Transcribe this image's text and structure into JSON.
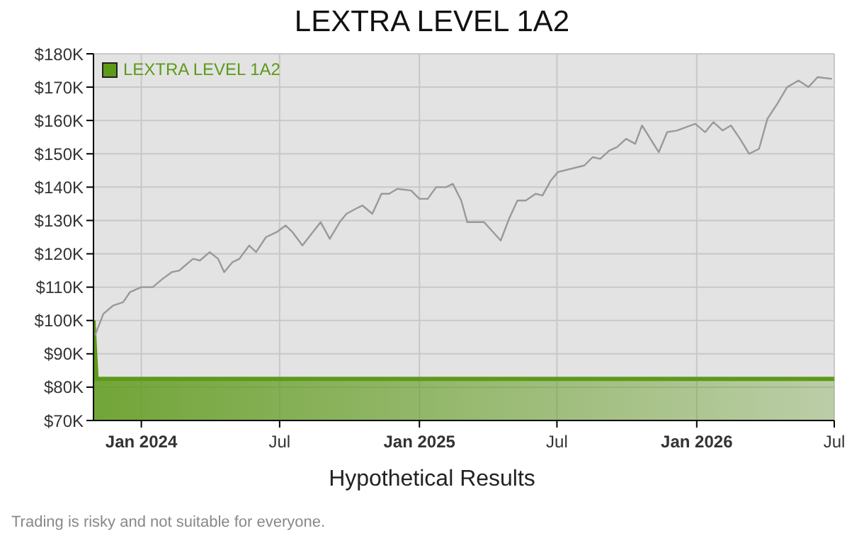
{
  "chart_data": {
    "type": "line",
    "title": "LEXTRA LEVEL 1A2",
    "xlabel": "Hypothetical Results",
    "annotations": [
      "Trading is risky and not suitable for everyone."
    ],
    "xlim": [
      "2023-10-30",
      "2026-07-01"
    ],
    "xticks": [
      {
        "value": "2024-01-01",
        "label": "Jan 2024"
      },
      {
        "value": "2024-07-01",
        "label": "Jul"
      },
      {
        "value": "2025-01-01",
        "label": "Jan 2025"
      },
      {
        "value": "2025-07-01",
        "label": "Jul"
      },
      {
        "value": "2026-01-01",
        "label": "Jan 2026"
      },
      {
        "value": "2026-07-01",
        "label": "Jul"
      }
    ],
    "ylim": [
      70000,
      180000
    ],
    "yticks": [
      {
        "value": 70000,
        "label": "$70K"
      },
      {
        "value": 80000,
        "label": "$80K"
      },
      {
        "value": 90000,
        "label": "$90K"
      },
      {
        "value": 100000,
        "label": "$100K"
      },
      {
        "value": 110000,
        "label": "$110K"
      },
      {
        "value": 120000,
        "label": "$120K"
      },
      {
        "value": 130000,
        "label": "$130K"
      },
      {
        "value": 140000,
        "label": "$140K"
      },
      {
        "value": 150000,
        "label": "$150K"
      },
      {
        "value": 160000,
        "label": "$160K"
      },
      {
        "value": 170000,
        "label": "$170K"
      },
      {
        "value": 180000,
        "label": "$180K"
      }
    ],
    "grid": true,
    "legend": "top left",
    "marker": "none",
    "series": [
      {
        "name": "LEXTRA LEVEL 1A2",
        "type": "area",
        "color": "#5e9a1a",
        "x": [
          "2023-10-30",
          "2023-11-03",
          "2026-07-01"
        ],
        "values": [
          100000,
          82500,
          82500
        ]
      },
      {
        "type": "line",
        "color": "#999999",
        "x": [
          "2023-11-01",
          "2023-11-12",
          "2023-11-25",
          "2023-12-08",
          "2023-12-17",
          "2024-01-01",
          "2024-01-16",
          "2024-01-29",
          "2024-02-10",
          "2024-02-20",
          "2024-03-09",
          "2024-03-18",
          "2024-03-31",
          "2024-04-11",
          "2024-04-19",
          "2024-04-30",
          "2024-05-09",
          "2024-05-22",
          "2024-05-31",
          "2024-06-13",
          "2024-06-27",
          "2024-07-09",
          "2024-07-18",
          "2024-07-31",
          "2024-08-24",
          "2024-09-05",
          "2024-09-18",
          "2024-09-27",
          "2024-10-09",
          "2024-10-18",
          "2024-10-31",
          "2024-11-12",
          "2024-11-22",
          "2024-12-03",
          "2024-12-21",
          "2025-01-01",
          "2025-01-12",
          "2025-01-23",
          "2025-02-05",
          "2025-02-14",
          "2025-02-25",
          "2025-03-05",
          "2025-03-27",
          "2025-04-18",
          "2025-04-29",
          "2025-05-10",
          "2025-05-21",
          "2025-06-03",
          "2025-06-12",
          "2025-06-23",
          "2025-07-02",
          "2025-08-06",
          "2025-08-17",
          "2025-08-27",
          "2025-09-08",
          "2025-09-18",
          "2025-09-30",
          "2025-10-12",
          "2025-10-21",
          "2025-11-12",
          "2025-11-23",
          "2025-12-06",
          "2025-12-30",
          "2026-01-12",
          "2026-01-23",
          "2026-02-04",
          "2026-02-15",
          "2026-02-27",
          "2026-03-11",
          "2026-03-24",
          "2026-04-04",
          "2026-04-17",
          "2026-04-30",
          "2026-05-15",
          "2026-05-28",
          "2026-06-09",
          "2026-06-28"
        ],
        "values": [
          95500,
          102000,
          104500,
          105500,
          108500,
          110000,
          110000,
          112500,
          114500,
          115000,
          118500,
          118000,
          120500,
          118500,
          114500,
          117500,
          118500,
          122500,
          120500,
          125000,
          126500,
          128500,
          126500,
          122500,
          129500,
          124500,
          129500,
          132000,
          133500,
          134500,
          132000,
          138000,
          138000,
          139500,
          139000,
          136500,
          136500,
          140000,
          140000,
          141000,
          136000,
          129500,
          129500,
          124000,
          130500,
          136000,
          136000,
          138000,
          137500,
          142000,
          144500,
          146500,
          149000,
          148500,
          151000,
          152000,
          154500,
          153000,
          158500,
          150500,
          156500,
          157000,
          159000,
          156500,
          159500,
          157000,
          158500,
          154500,
          150000,
          151500,
          160500,
          165000,
          170000,
          172000,
          170000,
          173000,
          172500
        ]
      }
    ]
  }
}
